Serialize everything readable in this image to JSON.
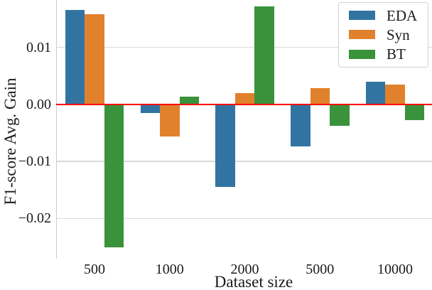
{
  "figure": {
    "background": "#ffffff",
    "grid_color": "#d9d9d9",
    "spine_color": "#cccccc",
    "text_color": "#1a1a1a",
    "zero_line_color": "#ff0000"
  },
  "legend": {
    "items": [
      {
        "label": "EDA",
        "color": "#3274a1"
      },
      {
        "label": "Syn",
        "color": "#e1812c"
      },
      {
        "label": "BT",
        "color": "#3a923a"
      }
    ]
  },
  "chart_data": {
    "type": "bar",
    "title": "",
    "xlabel": "Dataset size",
    "ylabel": "F1-score Avg. Gain",
    "categories": [
      "500",
      "1000",
      "2000",
      "5000",
      "10000"
    ],
    "series": [
      {
        "name": "EDA",
        "color": "#3274a1",
        "values": [
          0.0166,
          -0.0015,
          -0.0145,
          -0.0074,
          0.004
        ]
      },
      {
        "name": "Syn",
        "color": "#e1812c",
        "values": [
          0.0158,
          -0.0056,
          0.002,
          0.0029,
          0.0035
        ]
      },
      {
        "name": "BT",
        "color": "#3a923a",
        "values": [
          -0.0251,
          0.0014,
          0.0172,
          -0.0037,
          -0.0028
        ]
      }
    ],
    "yticks": [
      0.01,
      0.0,
      -0.01,
      -0.02
    ],
    "ytick_labels": [
      "0.01",
      "0.00",
      "−0.01",
      "−0.02"
    ],
    "ylim": [
      -0.027,
      0.0183
    ],
    "grid": true,
    "zero_line": true,
    "legend_position": "upper right"
  }
}
